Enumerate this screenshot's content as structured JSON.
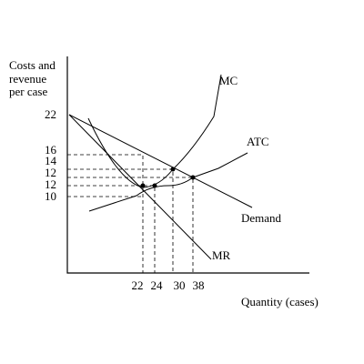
{
  "y_axis": {
    "label_lines": [
      "Costs and",
      "revenue",
      "per case"
    ],
    "ticks": [
      "22",
      "16",
      "14",
      "12",
      "12",
      "10"
    ]
  },
  "x_axis": {
    "label": "Quantity (cases)",
    "ticks": [
      "22",
      "24",
      "30",
      "38"
    ]
  },
  "curves": {
    "mc": "MC",
    "atc": "ATC",
    "demand": "Demand",
    "mr": "MR"
  }
}
